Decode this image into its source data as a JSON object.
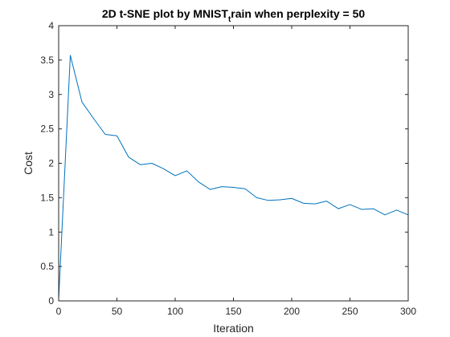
{
  "chart_data": {
    "type": "line",
    "title": {
      "prefix": "2D t-SNE plot by MNIST",
      "subscript": "t",
      "suffix": "rain when perplexity = 50"
    },
    "xlabel": "Iteration",
    "ylabel": "Cost",
    "xlim": [
      0,
      300
    ],
    "ylim": [
      0,
      4
    ],
    "xticks": [
      0,
      50,
      100,
      150,
      200,
      250,
      300
    ],
    "yticks": [
      0,
      0.5,
      1,
      1.5,
      2,
      2.5,
      3,
      3.5,
      4
    ],
    "xtick_labels": [
      "0",
      "50",
      "100",
      "150",
      "200",
      "250",
      "300"
    ],
    "ytick_labels": [
      "0",
      "0.5",
      "1",
      "1.5",
      "2",
      "2.5",
      "3",
      "3.5",
      "4"
    ],
    "grid": false,
    "box": true,
    "series": [
      {
        "color": "#0072BD",
        "x": [
          0,
          10,
          20,
          30,
          40,
          50,
          60,
          70,
          80,
          90,
          100,
          110,
          120,
          130,
          140,
          150,
          160,
          170,
          180,
          190,
          200,
          210,
          220,
          230,
          240,
          250,
          260,
          270,
          280,
          290,
          300
        ],
        "y": [
          0.02,
          3.57,
          2.89,
          2.65,
          2.42,
          2.4,
          2.09,
          1.98,
          2.0,
          1.92,
          1.82,
          1.89,
          1.73,
          1.62,
          1.66,
          1.65,
          1.63,
          1.5,
          1.46,
          1.47,
          1.49,
          1.42,
          1.41,
          1.45,
          1.34,
          1.4,
          1.33,
          1.34,
          1.25,
          1.32,
          1.25
        ]
      }
    ]
  }
}
